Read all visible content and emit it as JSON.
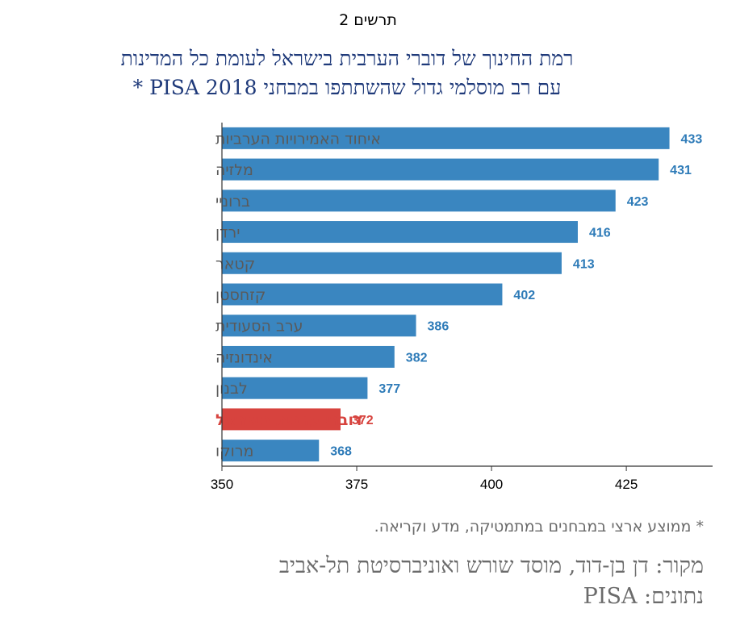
{
  "figure_number": "תרשים 2",
  "title_line1": "רמת החינוך של דוברי הערבית בישראל לעומת כל המדינות",
  "title_line2": "עם רב מוסלמי גדול שהשתתפו במבחני PISA 2018 *",
  "footnote": "* ממוצע ארצי במבחנים במתמטיקה, מדע וקריאה.",
  "source": "מקור: דן בן-דוד, מוסד שורש ואוניברסיטת תל-אביב",
  "data_source": "נתונים: PISA",
  "colors": {
    "bar": "#3a86c0",
    "highlight": "#d7433e",
    "label_text": "#5a5a5a",
    "value_text": "#2e7bb8"
  },
  "chart_data": {
    "type": "bar",
    "orientation": "horizontal",
    "categories": [
      "איחוד האמירויות הערביות",
      "מלזיה",
      "ברוניי",
      "ירדן",
      "קטאר",
      "קזחסטן",
      "ערב הסעודית",
      "אינדונזיה",
      "לבנון",
      "דוברי ערבית בישראל",
      "מרוקו"
    ],
    "values": [
      433,
      431,
      423,
      416,
      413,
      402,
      386,
      382,
      377,
      372,
      368
    ],
    "highlight_index": 9,
    "xlim": [
      350,
      441
    ],
    "xticks": [
      350,
      375,
      400,
      425
    ],
    "grid": false
  }
}
